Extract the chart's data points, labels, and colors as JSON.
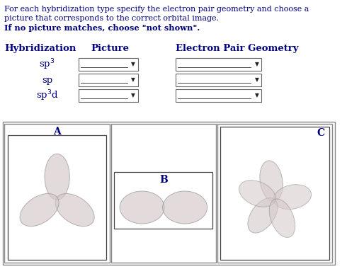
{
  "bg_color": "#ffffff",
  "text_color": "#000080",
  "figure_size": [
    5.14,
    3.8
  ],
  "dpi": 100,
  "instruction_line1": "For each hybridization type specify the electron pair geometry and choose a",
  "instruction_line2": "picture that corresponds to the correct orbital image.",
  "instruction_line3": "If no picture matches, choose \"not shown\".",
  "col_header1": "Hybridization",
  "col_header2": "Picture",
  "col_header3": "Electron Pair Geometry",
  "row_labels": [
    "sp$^3$",
    "sp",
    "sp$^3$d"
  ],
  "panel_labels": [
    "A",
    "B",
    "C"
  ],
  "lobe_color_light": "#d4c8c8",
  "lobe_color_dark": "#b0a0a0",
  "lobe_edge": "#909090"
}
